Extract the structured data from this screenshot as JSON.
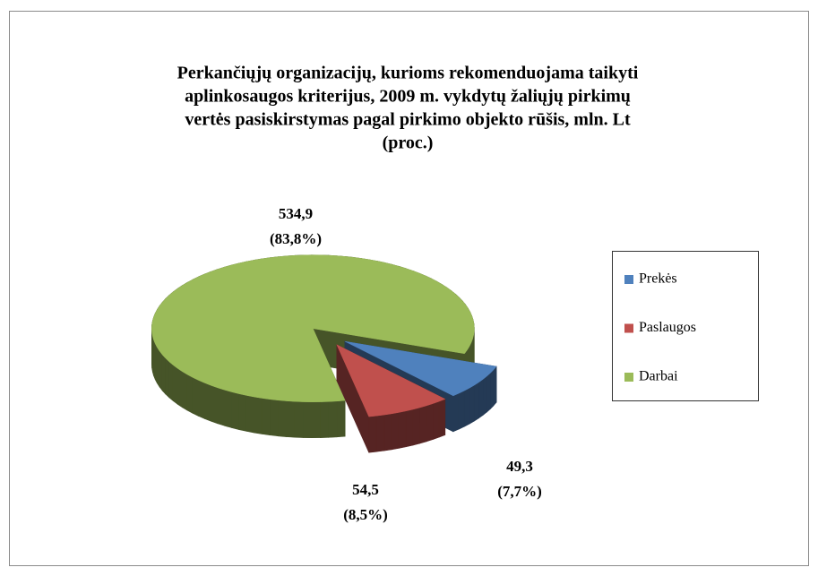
{
  "chart_data": {
    "type": "pie3d",
    "title": [
      "Perkančiųjų organizacijų, kurioms rekomenduojama taikyti",
      "aplinkosaugos kriterijus, 2009 m. vykdytų žaliųjų pirkimų",
      "vertės pasiskirstymas pagal pirkimo objekto rūšis, mln. Lt",
      "(proc.)"
    ],
    "categories": [
      "Prekės",
      "Paslaugos",
      "Darbai"
    ],
    "values": [
      49.3,
      54.5,
      534.9
    ],
    "value_labels": [
      "49,3",
      "54,5",
      "534,9"
    ],
    "percents": [
      7.7,
      8.5,
      83.8
    ],
    "percent_labels": [
      "(7,7%)",
      "(8,5%)",
      "(83,8%)"
    ],
    "colors": [
      "#4f81bd",
      "#c0504d",
      "#9bbb59"
    ],
    "legend": "right"
  }
}
